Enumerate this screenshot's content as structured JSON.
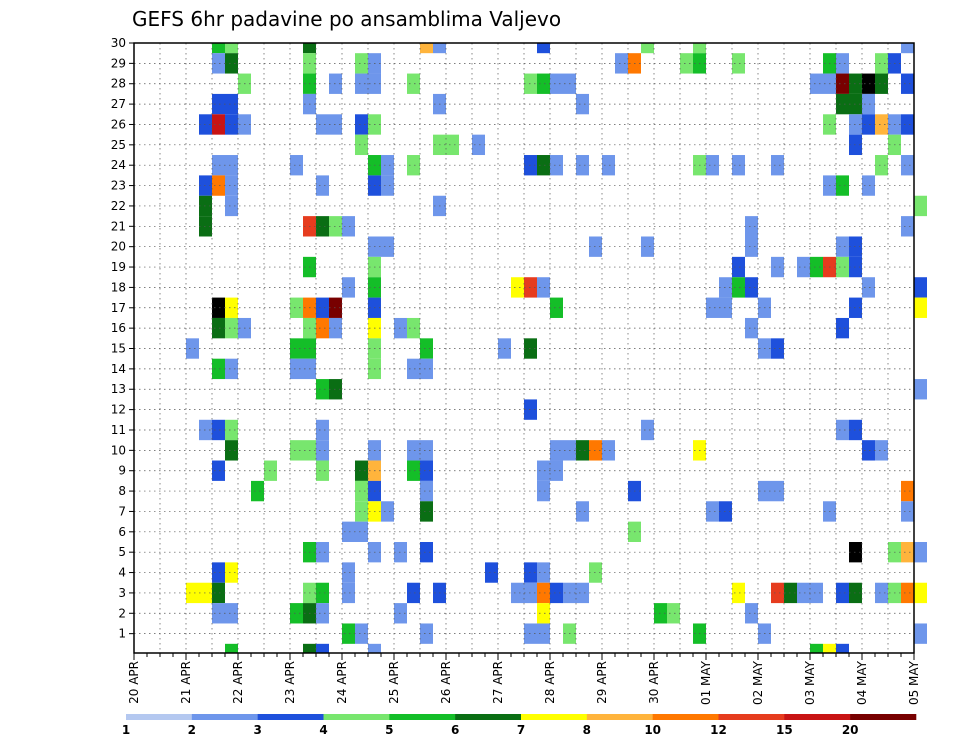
{
  "chart_data": {
    "type": "heatmap",
    "title": "GEFS 6hr padavine po ansamblima Valjevo",
    "xlabel": "",
    "ylabel": "",
    "x_ticks": [
      "20 APR",
      "21 APR",
      "22 APR",
      "23 APR",
      "24 APR",
      "25 APR",
      "26 APR",
      "27 APR",
      "28 APR",
      "29 APR",
      "30 APR",
      "01 MAY",
      "02 MAY",
      "03 MAY",
      "04 MAY",
      "05 MAY"
    ],
    "x_steps_per_day": 4,
    "x_steps_total": 60,
    "y_range": [
      1,
      30
    ],
    "y_ticks": [
      1,
      2,
      3,
      4,
      5,
      6,
      7,
      8,
      9,
      10,
      11,
      12,
      13,
      14,
      15,
      16,
      17,
      18,
      19,
      20,
      21,
      22,
      23,
      24,
      25,
      26,
      27,
      28,
      29,
      30
    ],
    "grid": true,
    "colorbar": {
      "levels": [
        "1",
        "2",
        "3",
        "4",
        "5",
        "6",
        "7",
        "8",
        "10",
        "12",
        "15",
        "20"
      ],
      "colors": [
        "#b4c8f0",
        "#6e96eb",
        "#1e50dc",
        "#78e66e",
        "#14be28",
        "#0a6e14",
        "#ffff00",
        "#ffb43c",
        "#ff7800",
        "#e63c1e",
        "#c81414",
        "#780000"
      ]
    },
    "cells": [
      [
        6,
        30,
        4
      ],
      [
        7,
        30,
        3
      ],
      [
        13,
        30,
        5
      ],
      [
        22,
        30,
        7
      ],
      [
        23,
        30,
        1
      ],
      [
        31,
        30,
        2
      ],
      [
        39,
        30,
        3
      ],
      [
        43,
        30,
        3
      ],
      [
        59,
        30,
        1
      ],
      [
        6,
        29,
        1
      ],
      [
        7,
        29,
        5
      ],
      [
        13,
        29,
        3
      ],
      [
        17,
        29,
        3
      ],
      [
        18,
        29,
        1
      ],
      [
        37,
        29,
        1
      ],
      [
        38,
        29,
        8
      ],
      [
        42,
        29,
        3
      ],
      [
        43,
        29,
        4
      ],
      [
        46,
        29,
        3
      ],
      [
        53,
        29,
        4
      ],
      [
        54,
        29,
        1
      ],
      [
        57,
        29,
        3
      ],
      [
        58,
        29,
        2
      ],
      [
        8,
        28,
        3
      ],
      [
        13,
        28,
        4
      ],
      [
        15,
        28,
        1
      ],
      [
        17,
        28,
        1
      ],
      [
        18,
        28,
        1
      ],
      [
        21,
        28,
        3
      ],
      [
        30,
        28,
        3
      ],
      [
        31,
        28,
        4
      ],
      [
        32,
        28,
        1
      ],
      [
        33,
        28,
        1
      ],
      [
        52,
        28,
        1
      ],
      [
        53,
        28,
        1
      ],
      [
        54,
        28,
        11
      ],
      [
        55,
        28,
        5
      ],
      [
        56,
        28,
        12
      ],
      [
        57,
        28,
        5
      ],
      [
        59,
        28,
        2
      ],
      [
        6,
        27,
        2
      ],
      [
        7,
        27,
        2
      ],
      [
        13,
        27,
        1
      ],
      [
        23,
        27,
        1
      ],
      [
        34,
        27,
        1
      ],
      [
        54,
        27,
        5
      ],
      [
        55,
        27,
        5
      ],
      [
        56,
        27,
        1
      ],
      [
        5,
        26,
        2
      ],
      [
        6,
        26,
        10
      ],
      [
        7,
        26,
        2
      ],
      [
        8,
        26,
        1
      ],
      [
        14,
        26,
        1
      ],
      [
        15,
        26,
        1
      ],
      [
        17,
        26,
        2
      ],
      [
        18,
        26,
        3
      ],
      [
        53,
        26,
        3
      ],
      [
        55,
        26,
        1
      ],
      [
        56,
        26,
        2
      ],
      [
        57,
        26,
        7
      ],
      [
        58,
        26,
        1
      ],
      [
        59,
        26,
        2
      ],
      [
        17,
        25,
        3
      ],
      [
        23,
        25,
        3
      ],
      [
        24,
        25,
        3
      ],
      [
        26,
        25,
        1
      ],
      [
        55,
        25,
        2
      ],
      [
        58,
        25,
        3
      ],
      [
        6,
        24,
        1
      ],
      [
        7,
        24,
        1
      ],
      [
        12,
        24,
        1
      ],
      [
        18,
        24,
        4
      ],
      [
        19,
        24,
        1
      ],
      [
        21,
        24,
        3
      ],
      [
        30,
        24,
        2
      ],
      [
        31,
        24,
        5
      ],
      [
        32,
        24,
        1
      ],
      [
        34,
        24,
        1
      ],
      [
        36,
        24,
        1
      ],
      [
        43,
        24,
        3
      ],
      [
        44,
        24,
        1
      ],
      [
        46,
        24,
        1
      ],
      [
        49,
        24,
        1
      ],
      [
        57,
        24,
        3
      ],
      [
        59,
        24,
        1
      ],
      [
        5,
        23,
        2
      ],
      [
        6,
        23,
        8
      ],
      [
        7,
        23,
        1
      ],
      [
        14,
        23,
        1
      ],
      [
        18,
        23,
        2
      ],
      [
        19,
        23,
        1
      ],
      [
        53,
        23,
        1
      ],
      [
        54,
        23,
        4
      ],
      [
        56,
        23,
        1
      ],
      [
        5,
        22,
        5
      ],
      [
        7,
        22,
        1
      ],
      [
        23,
        22,
        1
      ],
      [
        60,
        22,
        3
      ],
      [
        5,
        21,
        5
      ],
      [
        13,
        21,
        9
      ],
      [
        14,
        21,
        5
      ],
      [
        15,
        21,
        3
      ],
      [
        16,
        21,
        1
      ],
      [
        47,
        21,
        1
      ],
      [
        59,
        21,
        1
      ],
      [
        18,
        20,
        1
      ],
      [
        19,
        20,
        1
      ],
      [
        35,
        20,
        1
      ],
      [
        39,
        20,
        1
      ],
      [
        47,
        20,
        1
      ],
      [
        54,
        20,
        1
      ],
      [
        55,
        20,
        2
      ],
      [
        13,
        19,
        4
      ],
      [
        18,
        19,
        3
      ],
      [
        46,
        19,
        2
      ],
      [
        49,
        19,
        1
      ],
      [
        51,
        19,
        1
      ],
      [
        52,
        19,
        4
      ],
      [
        53,
        19,
        9
      ],
      [
        54,
        19,
        3
      ],
      [
        55,
        19,
        2
      ],
      [
        16,
        18,
        1
      ],
      [
        18,
        18,
        4
      ],
      [
        29,
        18,
        6
      ],
      [
        30,
        18,
        9
      ],
      [
        31,
        18,
        1
      ],
      [
        45,
        18,
        1
      ],
      [
        46,
        18,
        4
      ],
      [
        47,
        18,
        2
      ],
      [
        56,
        18,
        1
      ],
      [
        60,
        18,
        2
      ],
      [
        6,
        17,
        12
      ],
      [
        7,
        17,
        6
      ],
      [
        12,
        17,
        3
      ],
      [
        13,
        17,
        8
      ],
      [
        14,
        17,
        2
      ],
      [
        15,
        17,
        11
      ],
      [
        18,
        17,
        2
      ],
      [
        32,
        17,
        4
      ],
      [
        44,
        17,
        1
      ],
      [
        45,
        17,
        1
      ],
      [
        48,
        17,
        1
      ],
      [
        55,
        17,
        2
      ],
      [
        60,
        17,
        6
      ],
      [
        6,
        16,
        5
      ],
      [
        7,
        16,
        3
      ],
      [
        8,
        16,
        1
      ],
      [
        13,
        16,
        3
      ],
      [
        14,
        16,
        8
      ],
      [
        15,
        16,
        1
      ],
      [
        18,
        16,
        6
      ],
      [
        20,
        16,
        1
      ],
      [
        21,
        16,
        3
      ],
      [
        47,
        16,
        1
      ],
      [
        54,
        16,
        2
      ],
      [
        4,
        15,
        1
      ],
      [
        12,
        15,
        4
      ],
      [
        13,
        15,
        4
      ],
      [
        18,
        15,
        3
      ],
      [
        22,
        15,
        4
      ],
      [
        28,
        15,
        1
      ],
      [
        30,
        15,
        5
      ],
      [
        48,
        15,
        1
      ],
      [
        49,
        15,
        2
      ],
      [
        6,
        14,
        4
      ],
      [
        7,
        14,
        1
      ],
      [
        12,
        14,
        1
      ],
      [
        13,
        14,
        1
      ],
      [
        18,
        14,
        3
      ],
      [
        21,
        14,
        1
      ],
      [
        22,
        14,
        1
      ],
      [
        14,
        13,
        4
      ],
      [
        15,
        13,
        5
      ],
      [
        60,
        13,
        1
      ],
      [
        30,
        12,
        2
      ],
      [
        5,
        11,
        1
      ],
      [
        6,
        11,
        2
      ],
      [
        7,
        11,
        3
      ],
      [
        14,
        11,
        1
      ],
      [
        39,
        11,
        1
      ],
      [
        54,
        11,
        1
      ],
      [
        55,
        11,
        2
      ],
      [
        7,
        10,
        5
      ],
      [
        12,
        10,
        3
      ],
      [
        13,
        10,
        3
      ],
      [
        14,
        10,
        1
      ],
      [
        18,
        10,
        1
      ],
      [
        21,
        10,
        1
      ],
      [
        22,
        10,
        1
      ],
      [
        32,
        10,
        1
      ],
      [
        33,
        10,
        1
      ],
      [
        34,
        10,
        5
      ],
      [
        35,
        10,
        8
      ],
      [
        36,
        10,
        1
      ],
      [
        43,
        10,
        6
      ],
      [
        56,
        10,
        2
      ],
      [
        57,
        10,
        1
      ],
      [
        6,
        9,
        2
      ],
      [
        10,
        9,
        3
      ],
      [
        14,
        9,
        3
      ],
      [
        17,
        9,
        5
      ],
      [
        18,
        9,
        7
      ],
      [
        21,
        9,
        4
      ],
      [
        22,
        9,
        2
      ],
      [
        31,
        9,
        1
      ],
      [
        32,
        9,
        1
      ],
      [
        9,
        8,
        4
      ],
      [
        17,
        8,
        3
      ],
      [
        18,
        8,
        2
      ],
      [
        22,
        8,
        1
      ],
      [
        31,
        8,
        1
      ],
      [
        38,
        8,
        2
      ],
      [
        48,
        8,
        1
      ],
      [
        49,
        8,
        1
      ],
      [
        59,
        8,
        8
      ],
      [
        17,
        7,
        3
      ],
      [
        18,
        7,
        6
      ],
      [
        19,
        7,
        1
      ],
      [
        22,
        7,
        5
      ],
      [
        34,
        7,
        1
      ],
      [
        44,
        7,
        1
      ],
      [
        45,
        7,
        2
      ],
      [
        53,
        7,
        1
      ],
      [
        59,
        7,
        1
      ],
      [
        16,
        6,
        1
      ],
      [
        17,
        6,
        1
      ],
      [
        38,
        6,
        3
      ],
      [
        13,
        5,
        4
      ],
      [
        14,
        5,
        1
      ],
      [
        18,
        5,
        1
      ],
      [
        20,
        5,
        1
      ],
      [
        22,
        5,
        2
      ],
      [
        55,
        5,
        12
      ],
      [
        58,
        5,
        3
      ],
      [
        59,
        5,
        7
      ],
      [
        60,
        5,
        1
      ],
      [
        6,
        4,
        2
      ],
      [
        7,
        4,
        6
      ],
      [
        16,
        4,
        1
      ],
      [
        27,
        4,
        2
      ],
      [
        30,
        4,
        2
      ],
      [
        31,
        4,
        1
      ],
      [
        35,
        4,
        3
      ],
      [
        4,
        3,
        6
      ],
      [
        5,
        3,
        6
      ],
      [
        6,
        3,
        5
      ],
      [
        13,
        3,
        3
      ],
      [
        14,
        3,
        4
      ],
      [
        16,
        3,
        1
      ],
      [
        21,
        3,
        2
      ],
      [
        23,
        3,
        2
      ],
      [
        29,
        3,
        1
      ],
      [
        30,
        3,
        1
      ],
      [
        31,
        3,
        8
      ],
      [
        32,
        3,
        2
      ],
      [
        33,
        3,
        1
      ],
      [
        34,
        3,
        1
      ],
      [
        46,
        3,
        6
      ],
      [
        49,
        3,
        9
      ],
      [
        50,
        3,
        5
      ],
      [
        51,
        3,
        1
      ],
      [
        52,
        3,
        1
      ],
      [
        54,
        3,
        2
      ],
      [
        55,
        3,
        5
      ],
      [
        57,
        3,
        1
      ],
      [
        58,
        3,
        3
      ],
      [
        59,
        3,
        8
      ],
      [
        60,
        3,
        6
      ],
      [
        6,
        2,
        1
      ],
      [
        7,
        2,
        1
      ],
      [
        12,
        2,
        4
      ],
      [
        13,
        2,
        5
      ],
      [
        14,
        2,
        1
      ],
      [
        20,
        2,
        1
      ],
      [
        31,
        2,
        6
      ],
      [
        40,
        2,
        4
      ],
      [
        41,
        2,
        3
      ],
      [
        47,
        2,
        1
      ],
      [
        16,
        1,
        4
      ],
      [
        17,
        1,
        1
      ],
      [
        22,
        1,
        1
      ],
      [
        30,
        1,
        1
      ],
      [
        31,
        1,
        1
      ],
      [
        33,
        1,
        3
      ],
      [
        43,
        1,
        4
      ],
      [
        48,
        1,
        1
      ],
      [
        60,
        1,
        1
      ],
      [
        7,
        0,
        4
      ],
      [
        13,
        0,
        5
      ],
      [
        14,
        0,
        2
      ],
      [
        18,
        0,
        1
      ],
      [
        52,
        0,
        4
      ],
      [
        53,
        0,
        6
      ],
      [
        54,
        0,
        2
      ]
    ]
  }
}
